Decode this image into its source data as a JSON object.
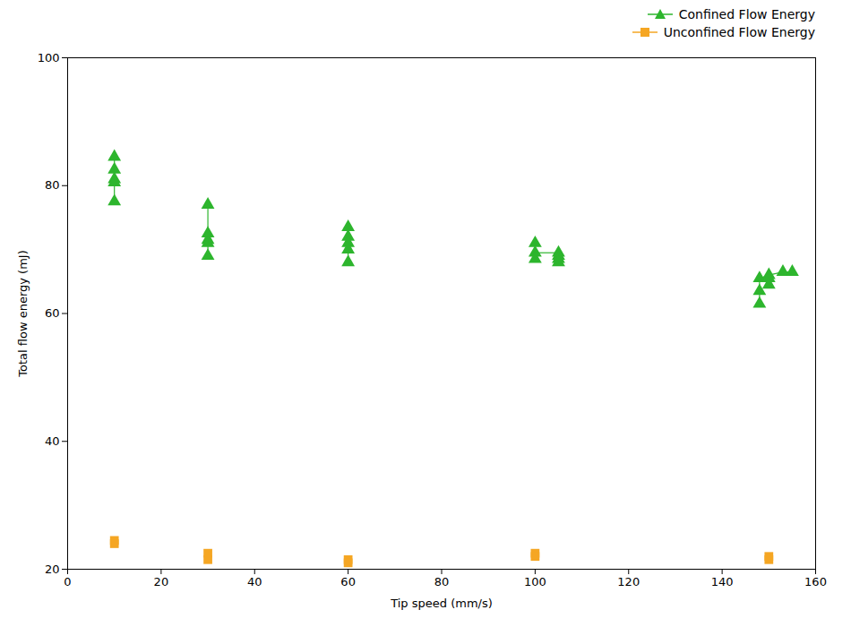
{
  "chart_data": {
    "type": "scatter",
    "xlabel": "Tip speed (mm/s)",
    "ylabel": "Total flow energy (mJ)",
    "xlim": [
      0,
      160
    ],
    "ylim": [
      20,
      100
    ],
    "xticks": [
      0,
      20,
      40,
      60,
      80,
      100,
      120,
      140,
      160
    ],
    "yticks": [
      20,
      40,
      60,
      80,
      100
    ],
    "grid": false,
    "legend": "upper right",
    "series": [
      {
        "name": "Confined Flow Energy",
        "color": "#2db52d",
        "marker": "triangle",
        "line_style": "solid",
        "values": [
          {
            "points": [
              [
                10,
                84.5
              ],
              [
                10,
                82.5
              ],
              [
                10,
                81.0
              ],
              [
                10,
                80.5
              ],
              [
                10,
                77.5
              ]
            ],
            "connections": [
              [
                0,
                1
              ],
              [
                1,
                2
              ],
              [
                2,
                3
              ],
              [
                3,
                4
              ]
            ]
          },
          {
            "points": [
              [
                30,
                77.0
              ],
              [
                30,
                72.5
              ],
              [
                30,
                71.5
              ],
              [
                30,
                71.0
              ],
              [
                30,
                69.0
              ]
            ],
            "connections": [
              [
                0,
                1
              ],
              [
                1,
                2
              ],
              [
                2,
                3
              ],
              [
                3,
                4
              ]
            ]
          },
          {
            "points": [
              [
                60,
                73.5
              ],
              [
                60,
                72.0
              ],
              [
                60,
                71.0
              ],
              [
                60,
                70.0
              ],
              [
                60,
                68.0
              ]
            ],
            "connections": [
              [
                0,
                1
              ],
              [
                1,
                2
              ],
              [
                2,
                3
              ],
              [
                3,
                4
              ]
            ]
          },
          {
            "points": [
              [
                100,
                71.0
              ],
              [
                100,
                69.5
              ],
              [
                100,
                68.5
              ],
              [
                105,
                69.5
              ],
              [
                105,
                69.0
              ],
              [
                105,
                68.5
              ],
              [
                105,
                68.0
              ]
            ],
            "connections": [
              [
                0,
                1
              ],
              [
                1,
                2
              ],
              [
                3,
                4
              ],
              [
                4,
                5
              ],
              [
                5,
                6
              ],
              [
                1,
                3
              ]
            ]
          },
          {
            "points": [
              [
                148,
                65.5
              ],
              [
                148,
                63.5
              ],
              [
                148,
                61.5
              ],
              [
                150,
                66.0
              ],
              [
                150,
                65.5
              ],
              [
                150,
                64.5
              ],
              [
                153,
                66.5
              ],
              [
                155,
                66.5
              ]
            ],
            "connections": [
              [
                0,
                1
              ],
              [
                1,
                2
              ],
              [
                3,
                4
              ],
              [
                4,
                5
              ],
              [
                0,
                3
              ],
              [
                3,
                6
              ],
              [
                6,
                7
              ]
            ]
          }
        ]
      },
      {
        "name": "Unconfined Flow Energy",
        "color": "#f5a623",
        "marker": "square",
        "line_style": "solid",
        "values": [
          {
            "points": [
              [
                10,
                24.5
              ],
              [
                10,
                24.0
              ]
            ],
            "connections": [
              [
                0,
                1
              ]
            ]
          },
          {
            "points": [
              [
                30,
                22.5
              ],
              [
                30,
                21.5
              ]
            ],
            "connections": [
              [
                0,
                1
              ]
            ]
          },
          {
            "points": [
              [
                60,
                21.5
              ],
              [
                60,
                21.0
              ]
            ],
            "connections": [
              [
                0,
                1
              ]
            ]
          },
          {
            "points": [
              [
                100,
                22.5
              ],
              [
                100,
                22.0
              ]
            ],
            "connections": [
              [
                0,
                1
              ]
            ]
          },
          {
            "points": [
              [
                150,
                22.0
              ],
              [
                150,
                21.5
              ]
            ],
            "connections": [
              [
                0,
                1
              ]
            ]
          }
        ]
      }
    ]
  }
}
